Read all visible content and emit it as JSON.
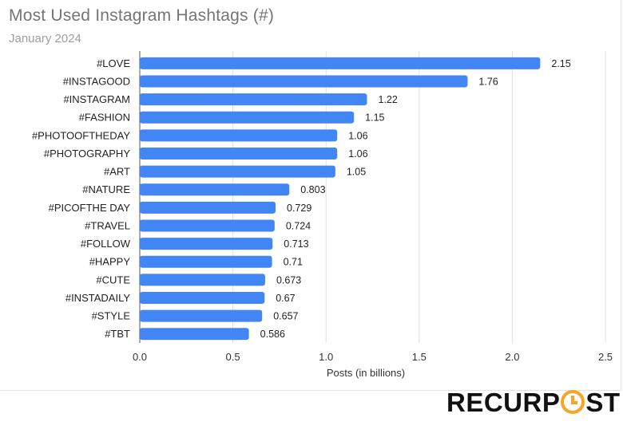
{
  "brand": {
    "logo_text": "RECURPOST",
    "accent": "#f5a623"
  },
  "chart_data": {
    "type": "bar",
    "orientation": "horizontal",
    "title": "Most Used Instagram Hashtags (#)",
    "subtitle": "January 2024",
    "xlabel": "Posts (in billions)",
    "ylabel": "",
    "xlim": [
      0,
      2.5
    ],
    "x_ticks": [
      "0.0",
      "0.5",
      "1.0",
      "1.5",
      "2.0",
      "2.5"
    ],
    "grid": true,
    "bar_color": "#4285f4",
    "categories": [
      "#LOVE",
      "#INSTAGOOD",
      "#INSTAGRAM",
      "#FASHION",
      "#PHOTOOFTHEDAY",
      "#PHOTOGRAPHY",
      "#ART",
      "#NATURE",
      "#PICOFTHE DAY",
      "#TRAVEL",
      "#FOLLOW",
      "#HAPPY",
      "#CUTE",
      "#INSTADAILY",
      "#STYLE",
      "#TBT"
    ],
    "values": [
      2.15,
      1.76,
      1.22,
      1.15,
      1.06,
      1.06,
      1.05,
      0.803,
      0.729,
      0.724,
      0.713,
      0.71,
      0.673,
      0.67,
      0.657,
      0.586
    ],
    "value_labels": [
      "2.15",
      "1.76",
      "1.22",
      "1.15",
      "1.06",
      "1.06",
      "1.05",
      "0.803",
      "0.729",
      "0.724",
      "0.713",
      "0.71",
      "0.673",
      "0.67",
      "0.657",
      "0.586"
    ]
  }
}
